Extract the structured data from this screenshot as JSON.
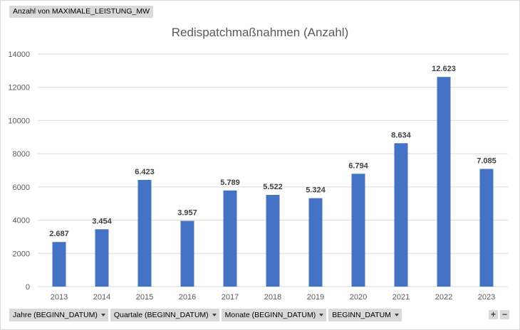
{
  "pivot": {
    "value_field_label": "Anzahl von MAXIMALE_LEISTUNG_MW",
    "filters": [
      {
        "label": "Jahre (BEGINN_DATUM)"
      },
      {
        "label": "Quartale (BEGINN_DATUM)"
      },
      {
        "label": "Monate (BEGINN_DATUM)"
      },
      {
        "label": "BEGINN_DATUM"
      }
    ],
    "zoom_in_label": "+",
    "zoom_out_label": "−"
  },
  "colors": {
    "bar": "#4472c4",
    "grid": "#d9d9d9",
    "axis_text": "#595959"
  },
  "chart_data": {
    "type": "bar",
    "title": "Redispatchmaßnahmen (Anzahl)",
    "xlabel": "",
    "ylabel": "",
    "categories": [
      "2013",
      "2014",
      "2015",
      "2016",
      "2017",
      "2018",
      "2019",
      "2020",
      "2021",
      "2022",
      "2023"
    ],
    "values": [
      2687,
      3454,
      6423,
      3957,
      5789,
      5522,
      5324,
      6794,
      8634,
      12623,
      7085
    ],
    "data_labels": [
      "2.687",
      "3.454",
      "6.423",
      "3.957",
      "5.789",
      "5.522",
      "5.324",
      "6.794",
      "8.634",
      "12.623",
      "7.085"
    ],
    "ylim": [
      0,
      14000
    ],
    "yticks": [
      0,
      2000,
      4000,
      6000,
      8000,
      10000,
      12000,
      14000
    ],
    "ytick_labels": [
      "0",
      "2000",
      "4000",
      "6000",
      "8000",
      "10000",
      "12000",
      "14000"
    ],
    "grid": true,
    "legend": "none"
  }
}
